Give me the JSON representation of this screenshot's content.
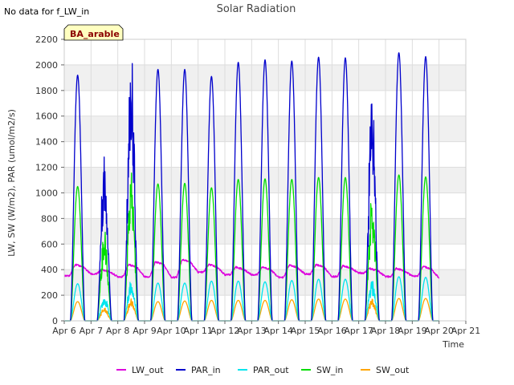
{
  "chart_data": {
    "type": "line",
    "title": "Solar Radiation",
    "note": "No data for f_LW_in",
    "badge": "BA_arable",
    "xlabel": "Time",
    "ylabel": "LW, SW (W/m2), PAR (umol/m2/s)",
    "xlim": [
      6,
      21
    ],
    "ylim": [
      0,
      2200
    ],
    "x_ticks": [
      6,
      7,
      8,
      9,
      10,
      11,
      12,
      13,
      14,
      15,
      16,
      17,
      18,
      19,
      20,
      21
    ],
    "x_tick_labels": [
      "Apr 6",
      "Apr 7",
      "Apr 8",
      "Apr 9",
      "Apr 10",
      "Apr 11",
      "Apr 12",
      "Apr 13",
      "Apr 14",
      "Apr 15",
      "Apr 16",
      "Apr 17",
      "Apr 18",
      "Apr 19",
      "Apr 20",
      "Apr 21"
    ],
    "y_ticks": [
      0,
      200,
      400,
      600,
      800,
      1000,
      1200,
      1400,
      1600,
      1800,
      2000,
      2200
    ],
    "y_tick_labels": [
      "0",
      "200",
      "400",
      "600",
      "800",
      "1000",
      "1200",
      "1400",
      "1600",
      "1800",
      "2000",
      "2200"
    ],
    "grid": true,
    "legend_position": "bottom",
    "days": [
      6.5,
      7.5,
      8.5,
      9.5,
      10.5,
      11.5,
      12.5,
      13.5,
      14.5,
      15.5,
      16.5,
      17.5,
      18.5,
      19.5
    ],
    "series": [
      {
        "name": "LW_out",
        "color": "#dd00dd",
        "lw_night": [
          350,
          365,
          345,
          345,
          340,
          380,
          360,
          360,
          340,
          365,
          345,
          375,
          345,
          350
        ],
        "lw_peak": [
          440,
          400,
          440,
          460,
          480,
          440,
          420,
          420,
          435,
          440,
          430,
          410,
          410,
          425
        ],
        "lw_end": 335
      },
      {
        "name": "PAR_in",
        "color": "#0000cc",
        "peaks": [
          1920,
          1140,
          1810,
          1965,
          1965,
          1910,
          2020,
          2040,
          2030,
          2060,
          2055,
          1560,
          2095,
          2065
        ]
      },
      {
        "name": "PAR_out",
        "color": "#00e5ee",
        "peaks": [
          290,
          170,
          280,
          295,
          295,
          310,
          310,
          305,
          315,
          325,
          325,
          270,
          345,
          340
        ]
      },
      {
        "name": "SW_in",
        "color": "#00dd00",
        "peaks": [
          1050,
          620,
          990,
          1070,
          1075,
          1040,
          1105,
          1110,
          1105,
          1120,
          1120,
          850,
          1140,
          1125
        ]
      },
      {
        "name": "SW_out",
        "color": "#ffa500",
        "peaks": [
          150,
          90,
          150,
          150,
          155,
          160,
          160,
          160,
          165,
          170,
          170,
          145,
          175,
          175
        ]
      }
    ]
  }
}
